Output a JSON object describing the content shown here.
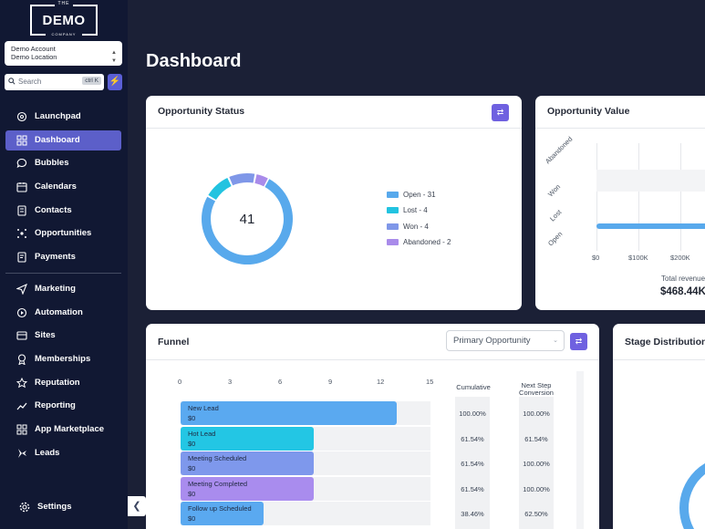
{
  "brand": {
    "top": "THE",
    "main": "DEMO",
    "sub": "COMPANY"
  },
  "account": {
    "name": "Demo Account",
    "location": "Demo Location"
  },
  "search": {
    "placeholder": "Search",
    "shortcut": "ctrl K"
  },
  "nav": [
    {
      "label": "Launchpad",
      "icon": "rocket-icon",
      "active": false
    },
    {
      "label": "Dashboard",
      "icon": "grid-icon",
      "active": true
    },
    {
      "label": "Bubbles",
      "icon": "chat-icon",
      "active": false
    },
    {
      "label": "Calendars",
      "icon": "calendar-icon",
      "active": false
    },
    {
      "label": "Contacts",
      "icon": "contacts-icon",
      "active": false
    },
    {
      "label": "Opportunities",
      "icon": "opportunities-icon",
      "active": false
    },
    {
      "label": "Payments",
      "icon": "payments-icon",
      "active": false
    },
    {
      "label": "Marketing",
      "icon": "send-icon",
      "active": false
    },
    {
      "label": "Automation",
      "icon": "automation-icon",
      "active": false
    },
    {
      "label": "Sites",
      "icon": "sites-icon",
      "active": false
    },
    {
      "label": "Memberships",
      "icon": "memberships-icon",
      "active": false
    },
    {
      "label": "Reputation",
      "icon": "reputation-icon",
      "active": false
    },
    {
      "label": "Reporting",
      "icon": "reporting-icon",
      "active": false
    },
    {
      "label": "App Marketplace",
      "icon": "apps-icon",
      "active": false
    },
    {
      "label": "Leads",
      "icon": "leads-icon",
      "active": false
    }
  ],
  "settings_label": "Settings",
  "page_title": "Dashboard",
  "opportunity_status": {
    "title": "Opportunity Status",
    "total": "41",
    "legend": [
      {
        "label": "Open - 31",
        "value": 31,
        "color": "#58a9ec"
      },
      {
        "label": "Lost - 4",
        "value": 4,
        "color": "#22c3e0"
      },
      {
        "label": "Won - 4",
        "value": 4,
        "color": "#7f97e8"
      },
      {
        "label": "Abandoned - 2",
        "value": 2,
        "color": "#a98bea"
      }
    ]
  },
  "opportunity_value": {
    "title": "Opportunity Value",
    "categories": [
      "Abandoned",
      "Won",
      "Lost",
      "Open"
    ],
    "x_ticks": [
      "$0",
      "$100K",
      "$200K"
    ],
    "total_label": "Total revenue",
    "total_value": "$468.44K"
  },
  "funnel": {
    "title": "Funnel",
    "select_value": "Primary Opportunity",
    "x_ticks": [
      "0",
      "3",
      "6",
      "9",
      "12",
      "15"
    ],
    "col_cumulative": "Cumulative",
    "col_next_step": "Next Step Conversion",
    "stages": [
      {
        "name": "New Lead",
        "value": "$0",
        "count": 13,
        "cumulative": "100.00%",
        "next": "100.00%",
        "color": "#5aa9f0"
      },
      {
        "name": "Hot Lead",
        "value": "$0",
        "count": 8,
        "cumulative": "61.54%",
        "next": "61.54%",
        "color": "#23c6e4"
      },
      {
        "name": "Meeting Scheduled",
        "value": "$0",
        "count": 8,
        "cumulative": "61.54%",
        "next": "100.00%",
        "color": "#7e98ec"
      },
      {
        "name": "Meeting Completed",
        "value": "$0",
        "count": 8,
        "cumulative": "61.54%",
        "next": "100.00%",
        "color": "#a98cee"
      },
      {
        "name": "Follow up Scheduled",
        "value": "$0",
        "count": 5,
        "cumulative": "38.46%",
        "next": "62.50%",
        "color": "#5aa9f0"
      }
    ]
  },
  "stage_distribution": {
    "title": "Stage Distribution"
  }
}
